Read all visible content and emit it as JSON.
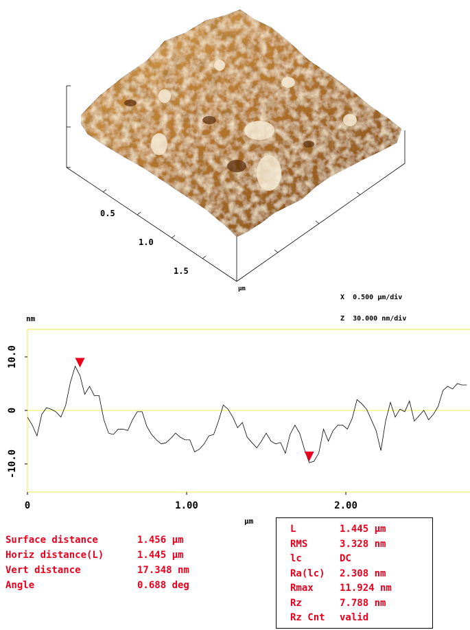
{
  "surface": {
    "x_ticks": [
      "0.5",
      "1.0",
      "1.5"
    ],
    "unit": "µm",
    "scale_x_label": "X",
    "scale_x_value": "0.500 µm/div",
    "scale_z_label": "Z",
    "scale_z_value": "30.000 nm/div"
  },
  "profile": {
    "y_unit": "nm",
    "x_unit": "µm",
    "y_ticks": [
      "10.0",
      "0",
      "-10.0"
    ],
    "x_ticks": [
      "0",
      "1.00",
      "2.00"
    ]
  },
  "measurements": [
    {
      "label": "Surface distance",
      "value": "1.456 µm"
    },
    {
      "label": "Horiz distance(L)",
      "value": "1.445 µm"
    },
    {
      "label": "Vert distance",
      "value": "17.348 nm"
    },
    {
      "label": "Angle",
      "value": "0.688 deg"
    }
  ],
  "stats": [
    {
      "label": "L",
      "value": "1.445 µm"
    },
    {
      "label": "RMS",
      "value": "3.328 nm"
    },
    {
      "label": "lc",
      "value": "DC"
    },
    {
      "label": "Ra(lc)",
      "value": "2.308 nm"
    },
    {
      "label": "Rmax",
      "value": "11.924 nm"
    },
    {
      "label": "Rz",
      "value": "7.788 nm"
    },
    {
      "label": "Rz Cnt",
      "value": "valid"
    }
  ],
  "chart_data": {
    "type": "line",
    "xlim": [
      0,
      2.78
    ],
    "ylim": [
      -15,
      15
    ],
    "x": [
      0.0,
      0.03,
      0.06,
      0.09,
      0.12,
      0.15,
      0.18,
      0.21,
      0.24,
      0.27,
      0.3,
      0.33,
      0.36,
      0.39,
      0.42,
      0.45,
      0.48,
      0.51,
      0.54,
      0.57,
      0.6,
      0.63,
      0.66,
      0.69,
      0.72,
      0.75,
      0.78,
      0.81,
      0.84,
      0.87,
      0.9,
      0.93,
      0.96,
      0.99,
      1.02,
      1.05,
      1.08,
      1.11,
      1.14,
      1.17,
      1.2,
      1.23,
      1.26,
      1.29,
      1.32,
      1.35,
      1.38,
      1.41,
      1.44,
      1.47,
      1.5,
      1.53,
      1.56,
      1.59,
      1.62,
      1.65,
      1.68,
      1.71,
      1.74,
      1.77,
      1.8,
      1.83,
      1.86,
      1.89,
      1.92,
      1.95,
      1.98,
      2.01,
      2.04,
      2.07,
      2.1,
      2.13,
      2.16,
      2.19,
      2.22,
      2.25,
      2.28,
      2.31,
      2.34,
      2.37,
      2.4,
      2.43,
      2.46,
      2.49,
      2.52,
      2.55,
      2.58,
      2.61,
      2.64,
      2.67,
      2.7,
      2.73,
      2.76
    ],
    "y": [
      -0.5,
      -2.5,
      -5.0,
      -1.5,
      1.0,
      0.2,
      -0.8,
      -0.5,
      1.2,
      5.0,
      7.5,
      7.0,
      3.0,
      4.0,
      3.5,
      3.0,
      -2.0,
      -5.0,
      -4.0,
      -3.5,
      -4.0,
      -3.0,
      -1.5,
      -0.5,
      -1.0,
      -2.5,
      -4.5,
      -6.0,
      -5.5,
      -5.8,
      -5.5,
      -5.0,
      -4.5,
      -5.5,
      -6.0,
      -7.0,
      -7.0,
      -6.5,
      -5.5,
      -4.0,
      -2.0,
      0.5,
      1.0,
      -1.0,
      -3.5,
      -3.0,
      -4.5,
      -6.0,
      -7.5,
      -5.0,
      -4.0,
      -6.0,
      -7.0,
      -5.5,
      -8.0,
      -5.0,
      -2.0,
      -4.0,
      -7.5,
      -10.5,
      -9.0,
      -8.0,
      -4.0,
      -5.0,
      -3.5,
      -3.0,
      -3.5,
      -3.0,
      -1.5,
      1.5,
      2.0,
      0.5,
      -2.0,
      -4.5,
      -7.0,
      -2.0,
      1.0,
      -0.5,
      0.5,
      -0.5,
      1.0,
      -1.5,
      -1.0,
      -0.5,
      -1.0,
      -0.5,
      0.5,
      3.0,
      5.0,
      4.0,
      4.5,
      5.5,
      5.0
    ],
    "markers": [
      {
        "x": 0.33,
        "y": 7.5
      },
      {
        "x": 1.77,
        "y": -10.0
      }
    ]
  }
}
